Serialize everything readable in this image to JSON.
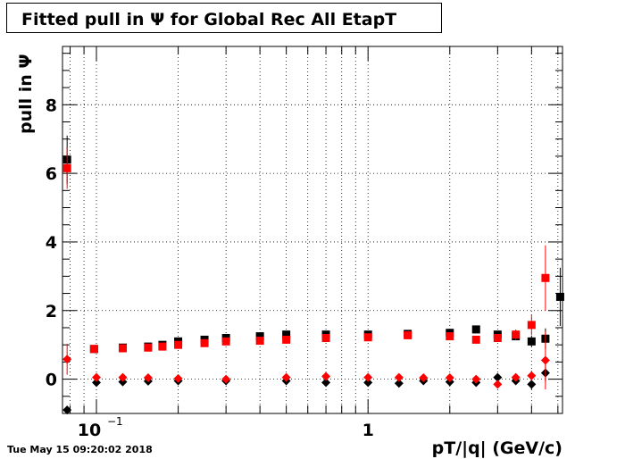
{
  "title": "Fitted pull in  Ψ  for Global Rec All EtapT",
  "timestamp": "Tue May 15 09:20:02 2018",
  "xlabel": "pT/|q| (GeV/c)",
  "ylabel": "pull in  Ψ",
  "colors": {
    "black_series": "#000000",
    "red_series": "#ff0000",
    "grid": "#000000"
  },
  "chart_data": {
    "type": "scatter",
    "xscale": "log",
    "xlim": [
      0.075,
      5.2
    ],
    "ylim": [
      -1.0,
      9.7
    ],
    "grid": true,
    "x_tick_labels": [
      {
        "value": 0.1,
        "base": "10",
        "exp": "−1"
      },
      {
        "value": 1,
        "base": "1",
        "exp": ""
      }
    ],
    "y_tick_labels": [
      0,
      2,
      4,
      6,
      8
    ],
    "series": [
      {
        "color": "#000000",
        "marker": "square",
        "points": [
          [
            0.078,
            6.4
          ],
          [
            0.098,
            0.88
          ],
          [
            0.125,
            0.92
          ],
          [
            0.155,
            0.95
          ],
          [
            0.175,
            1.0
          ],
          [
            0.2,
            1.1
          ],
          [
            0.25,
            1.15
          ],
          [
            0.3,
            1.2
          ],
          [
            0.4,
            1.25
          ],
          [
            0.5,
            1.3
          ],
          [
            0.7,
            1.3
          ],
          [
            1.0,
            1.3
          ],
          [
            1.4,
            1.32
          ],
          [
            2.0,
            1.35
          ],
          [
            2.5,
            1.45
          ],
          [
            3.0,
            1.3
          ],
          [
            3.5,
            1.25
          ],
          [
            4.0,
            1.1
          ],
          [
            4.5,
            1.18
          ],
          [
            5.1,
            2.4
          ]
        ],
        "yerr": [
          0.7,
          0.05,
          0.05,
          0.05,
          0.05,
          0.05,
          0.05,
          0.05,
          0.05,
          0.05,
          0.05,
          0.05,
          0.05,
          0.05,
          0.05,
          0.05,
          0.1,
          0.15,
          0.3,
          0.85
        ]
      },
      {
        "color": "#ff0000",
        "marker": "square",
        "points": [
          [
            0.078,
            6.15
          ],
          [
            0.098,
            0.88
          ],
          [
            0.125,
            0.9
          ],
          [
            0.155,
            0.92
          ],
          [
            0.175,
            0.95
          ],
          [
            0.2,
            1.0
          ],
          [
            0.25,
            1.05
          ],
          [
            0.3,
            1.1
          ],
          [
            0.4,
            1.12
          ],
          [
            0.5,
            1.15
          ],
          [
            0.7,
            1.2
          ],
          [
            1.0,
            1.22
          ],
          [
            1.4,
            1.28
          ],
          [
            2.0,
            1.25
          ],
          [
            2.5,
            1.15
          ],
          [
            3.0,
            1.2
          ],
          [
            3.5,
            1.3
          ],
          [
            4.0,
            1.58
          ],
          [
            4.5,
            2.95
          ]
        ],
        "yerr": [
          0.6,
          0.05,
          0.05,
          0.05,
          0.05,
          0.05,
          0.05,
          0.05,
          0.05,
          0.05,
          0.05,
          0.05,
          0.05,
          0.05,
          0.05,
          0.1,
          0.15,
          0.3,
          0.95
        ]
      },
      {
        "color": "#000000",
        "marker": "diamond",
        "points": [
          [
            0.078,
            -0.9
          ],
          [
            0.1,
            -0.1
          ],
          [
            0.125,
            -0.08
          ],
          [
            0.155,
            -0.06
          ],
          [
            0.2,
            -0.05
          ],
          [
            0.3,
            -0.05
          ],
          [
            0.5,
            -0.05
          ],
          [
            0.7,
            -0.1
          ],
          [
            1.0,
            -0.1
          ],
          [
            1.3,
            -0.12
          ],
          [
            1.6,
            -0.05
          ],
          [
            2.0,
            -0.08
          ],
          [
            2.5,
            -0.1
          ],
          [
            3.0,
            0.05
          ],
          [
            3.5,
            -0.05
          ],
          [
            4.0,
            -0.15
          ],
          [
            4.5,
            0.18
          ]
        ],
        "yerr": [
          0.1,
          0.03,
          0.03,
          0.03,
          0.03,
          0.03,
          0.03,
          0.03,
          0.03,
          0.03,
          0.03,
          0.03,
          0.05,
          0.08,
          0.1,
          0.15,
          0.25
        ]
      },
      {
        "color": "#ff0000",
        "marker": "diamond",
        "points": [
          [
            0.078,
            0.58
          ],
          [
            0.1,
            0.05
          ],
          [
            0.125,
            0.05
          ],
          [
            0.155,
            0.04
          ],
          [
            0.2,
            0.02
          ],
          [
            0.3,
            0.0
          ],
          [
            0.5,
            0.05
          ],
          [
            0.7,
            0.08
          ],
          [
            1.0,
            0.05
          ],
          [
            1.3,
            0.05
          ],
          [
            1.6,
            0.04
          ],
          [
            2.0,
            0.04
          ],
          [
            2.5,
            0.0
          ],
          [
            3.0,
            -0.15
          ],
          [
            3.5,
            0.05
          ],
          [
            4.0,
            0.1
          ],
          [
            4.5,
            0.55
          ]
        ],
        "yerr": [
          0.45,
          0.03,
          0.03,
          0.03,
          0.03,
          0.03,
          0.03,
          0.03,
          0.03,
          0.03,
          0.03,
          0.03,
          0.05,
          0.08,
          0.1,
          0.15,
          0.85
        ]
      }
    ]
  }
}
